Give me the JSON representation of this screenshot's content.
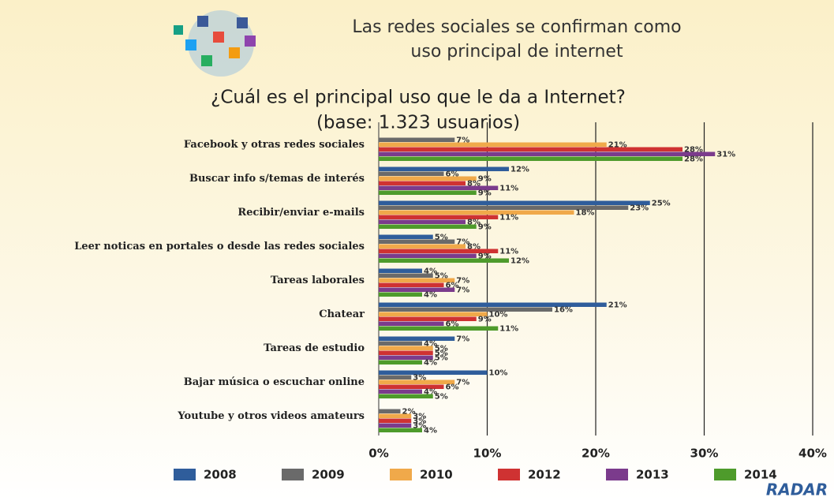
{
  "chart_data": {
    "type": "hbar",
    "title": "Las redes sociales se confirman como",
    "title_line2": "uso principal de internet",
    "subtitle": "¿Cuál es el principal uso que le da a Internet?",
    "subtitle_line2": "(base: 1.323 usuarios)",
    "logo": "RADAR",
    "categories": [
      "Facebook y otras redes sociales",
      "Buscar info s/temas de interés",
      "Recibir/enviar e-mails",
      "Leer noticas en portales o desde las redes sociales",
      "Tareas laborales",
      "Chatear",
      "Tareas de estudio",
      "Bajar música o escuchar online",
      "Youtube y otros videos amateurs"
    ],
    "series": [
      {
        "name": "2008",
        "color": "#2f5d9b",
        "values": [
          null,
          12,
          25,
          5,
          4,
          21,
          7,
          10,
          null
        ],
        "value_labels": [
          null,
          "12%",
          "25%",
          "5%",
          "4%",
          "21%",
          "7%",
          "10%",
          null
        ]
      },
      {
        "name": "2009",
        "color": "#6a6a6a",
        "values": [
          7,
          6,
          23,
          7,
          5,
          16,
          4,
          3,
          2
        ],
        "value_labels": [
          "7%",
          "6%",
          "23%",
          "7%",
          "5%",
          "16%",
          "4%",
          "3%",
          "2%"
        ]
      },
      {
        "name": "2010",
        "color": "#f0a94a",
        "values": [
          21,
          9,
          18,
          8,
          7,
          10,
          5,
          7,
          3
        ],
        "value_labels": [
          "21%",
          "9%",
          "18%",
          "8%",
          "7%",
          "10%",
          "5%",
          "7%",
          "3%"
        ]
      },
      {
        "name": "2012",
        "color": "#cf3232",
        "values": [
          28,
          8,
          11,
          11,
          6,
          9,
          5,
          6,
          3
        ],
        "value_labels": [
          "28%",
          "8%",
          "11%",
          "11%",
          "6%",
          "9%",
          "5%",
          "6%",
          "3%"
        ]
      },
      {
        "name": "2013",
        "color": "#7b3b8c",
        "values": [
          31,
          11,
          8,
          9,
          7,
          6,
          5,
          4,
          3
        ],
        "value_labels": [
          "31%",
          "11%",
          "8%",
          "9%",
          "7%",
          "6%",
          "5%",
          "4%",
          "3%"
        ]
      },
      {
        "name": "2014",
        "color": "#4e9b2b",
        "values": [
          28,
          9,
          9,
          12,
          4,
          11,
          4,
          5,
          4
        ],
        "value_labels": [
          "28%",
          "9%",
          "9%",
          "12%",
          "4%",
          "11%",
          "4%",
          "5%",
          "4%"
        ]
      }
    ],
    "xlim": [
      0,
      40
    ],
    "xticks": [
      {
        "value": 0,
        "label": "0%"
      },
      {
        "value": 10,
        "label": "10%"
      },
      {
        "value": 20,
        "label": "20%"
      },
      {
        "value": 30,
        "label": "30%"
      },
      {
        "value": 40,
        "label": "40%"
      }
    ],
    "grid": true
  }
}
